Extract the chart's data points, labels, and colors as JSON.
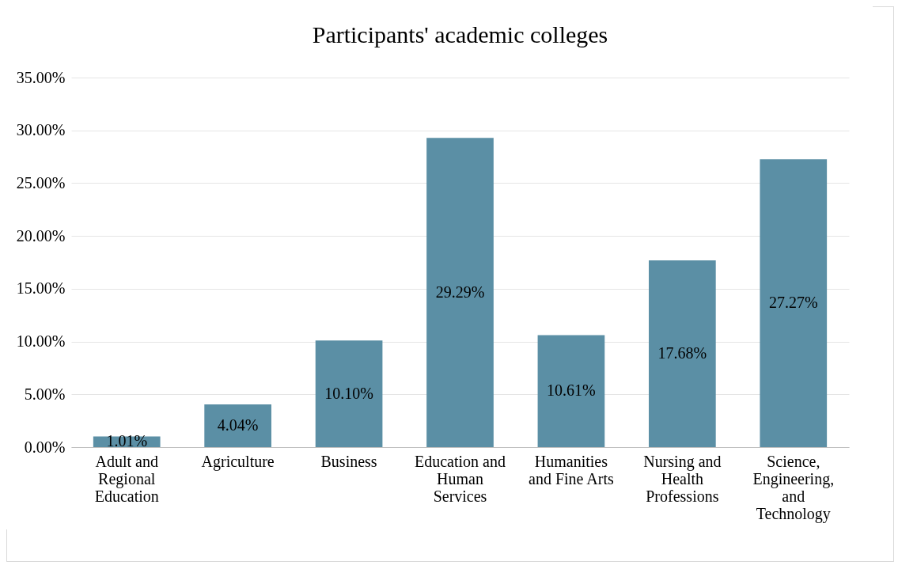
{
  "chart_data": {
    "type": "bar",
    "title": "Participants' academic colleges",
    "categories": [
      "Adult and Regional Education",
      "Agriculture",
      "Business",
      "Education and Human Services",
      "Humanities and Fine Arts",
      "Nursing and Health Professions",
      "Science, Engineering, and Technology"
    ],
    "values": [
      1.01,
      4.04,
      10.1,
      29.29,
      10.61,
      17.68,
      27.27
    ],
    "value_labels": [
      "1.01%",
      "4.04%",
      "10.10%",
      "29.29%",
      "10.61%",
      "17.68%",
      "27.27%"
    ],
    "color": "#5b8fa5",
    "ylim": [
      0,
      35
    ],
    "yticks": [
      {
        "value": 0,
        "label": "0.00%"
      },
      {
        "value": 5,
        "label": "5.00%"
      },
      {
        "value": 10,
        "label": "10.00%"
      },
      {
        "value": 15,
        "label": "15.00%"
      },
      {
        "value": 20,
        "label": "20.00%"
      },
      {
        "value": 25,
        "label": "25.00%"
      },
      {
        "value": 30,
        "label": "30.00%"
      },
      {
        "value": 35,
        "label": "35.00%"
      }
    ],
    "grid": "y"
  }
}
